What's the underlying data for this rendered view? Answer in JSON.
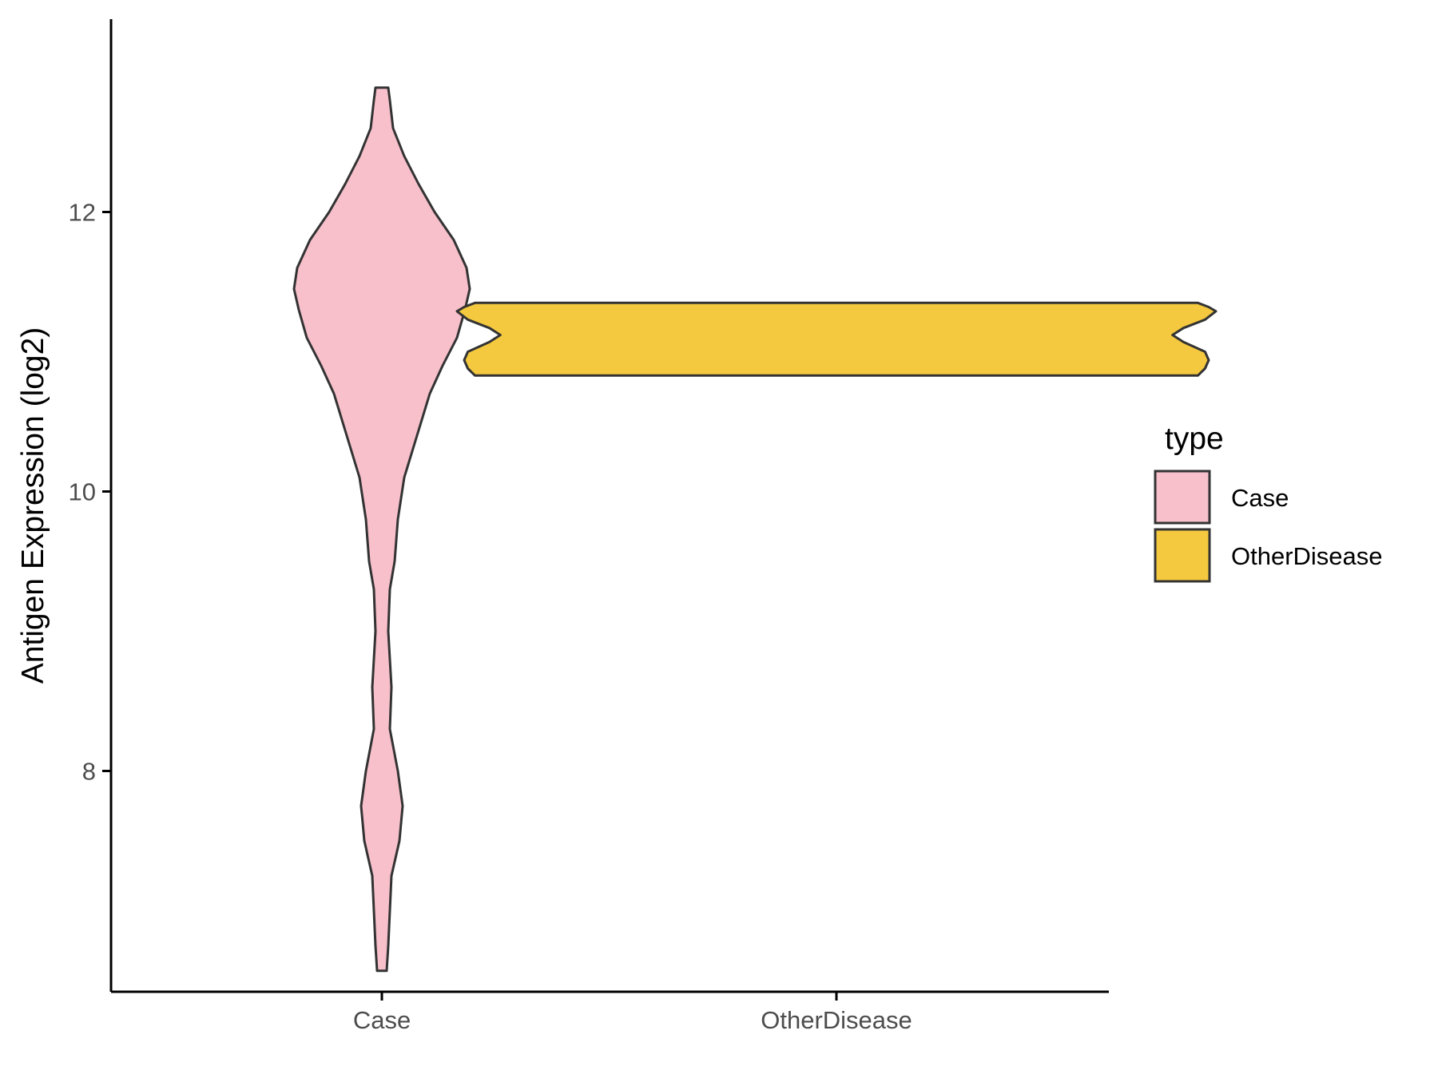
{
  "chart_data": {
    "type": "violin",
    "ylabel": "Antigen Expression (log2)",
    "xlabel": "",
    "categories": [
      "Case",
      "OtherDisease"
    ],
    "ylim": [
      6.42,
      13.38
    ],
    "yticks": [
      8,
      10,
      12
    ],
    "grid": false,
    "legend": {
      "title": "type",
      "placement": "right",
      "entries": [
        {
          "label": "Case",
          "color": "#F7C0CB"
        },
        {
          "label": "OtherDisease",
          "color": "#F5C93F"
        }
      ]
    },
    "series": [
      {
        "category": "Case",
        "color": "#F7C0CB",
        "y_min": 6.57,
        "y_max": 12.89,
        "density_profile": [
          [
            6.57,
            0.03
          ],
          [
            6.75,
            0.04
          ],
          [
            7.0,
            0.05
          ],
          [
            7.25,
            0.06
          ],
          [
            7.5,
            0.11
          ],
          [
            7.75,
            0.13
          ],
          [
            8.0,
            0.1
          ],
          [
            8.3,
            0.05
          ],
          [
            8.6,
            0.06
          ],
          [
            9.0,
            0.04
          ],
          [
            9.3,
            0.05
          ],
          [
            9.5,
            0.08
          ],
          [
            9.8,
            0.1
          ],
          [
            10.1,
            0.14
          ],
          [
            10.4,
            0.22
          ],
          [
            10.7,
            0.3
          ],
          [
            10.9,
            0.38
          ],
          [
            11.1,
            0.47
          ],
          [
            11.3,
            0.52
          ],
          [
            11.45,
            0.55
          ],
          [
            11.6,
            0.53
          ],
          [
            11.8,
            0.45
          ],
          [
            12.0,
            0.33
          ],
          [
            12.2,
            0.23
          ],
          [
            12.4,
            0.14
          ],
          [
            12.6,
            0.07
          ],
          [
            12.8,
            0.05
          ],
          [
            12.89,
            0.04
          ]
        ]
      },
      {
        "category": "OtherDisease",
        "color": "#F5C93F",
        "y_min": 10.83,
        "y_max": 11.35,
        "density_profile": [
          [
            10.83,
            1.0
          ],
          [
            10.88,
            1.02
          ],
          [
            10.94,
            1.03
          ],
          [
            11.0,
            1.02
          ],
          [
            11.07,
            0.96
          ],
          [
            11.12,
            0.93
          ],
          [
            11.17,
            0.96
          ],
          [
            11.23,
            1.02
          ],
          [
            11.29,
            1.05
          ],
          [
            11.32,
            1.03
          ],
          [
            11.35,
            1.0
          ]
        ]
      }
    ]
  }
}
